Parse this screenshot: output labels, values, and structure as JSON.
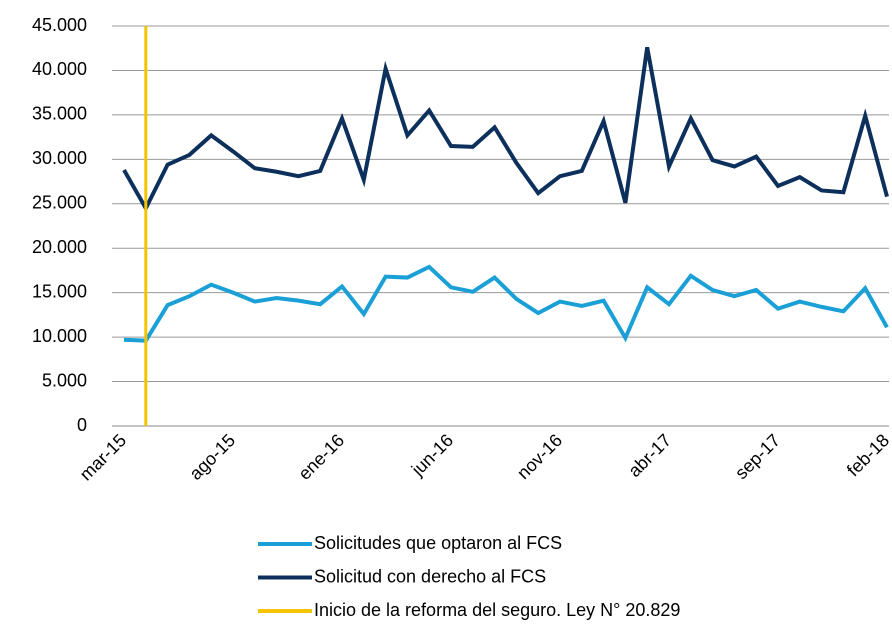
{
  "chart_data": {
    "type": "line",
    "categories": [
      "mar-15",
      null,
      null,
      null,
      null,
      "ago-15",
      null,
      null,
      null,
      null,
      "ene-16",
      null,
      null,
      null,
      null,
      "jun-16",
      null,
      null,
      null,
      null,
      "nov-16",
      null,
      null,
      null,
      null,
      "abr-17",
      null,
      null,
      null,
      null,
      "sep-17",
      null,
      null,
      null,
      null,
      "feb-18"
    ],
    "series": [
      {
        "name": "Solicitudes que optaron al FCS",
        "color": "#1aa0d6",
        "values": [
          9700,
          9600,
          13600,
          14600,
          15900,
          15000,
          14000,
          14400,
          14100,
          13700,
          15700,
          12600,
          16800,
          16700,
          17900,
          15600,
          15100,
          16700,
          14300,
          12700,
          14000,
          13500,
          14100,
          9900,
          15600,
          13700,
          16900,
          15300,
          14600,
          15300,
          13200,
          14000,
          13400,
          12900,
          15500,
          11100
        ]
      },
      {
        "name": "Solicitud  con derecho al FCS",
        "color": "#0d2f5c",
        "values": [
          28800,
          24500,
          29400,
          30500,
          32700,
          30900,
          29000,
          28600,
          28100,
          28700,
          34600,
          27700,
          40200,
          32700,
          35500,
          31500,
          31400,
          33600,
          29600,
          26200,
          28100,
          28700,
          34300,
          25100,
          42600,
          29200,
          34600,
          29900,
          29200,
          30300,
          27000,
          28000,
          26500,
          26300,
          34900,
          25800
        ]
      }
    ],
    "reform_marker": {
      "name": "Inicio de la reforma del seguro. Ley N° 20.829",
      "color": "#f5c400",
      "index": 1
    },
    "ylim": [
      0,
      45000
    ],
    "yticks": [
      0,
      {
        "value": 5000,
        "label": "5.000"
      },
      {
        "value": 10000,
        "label": "10.000"
      },
      {
        "value": 15000,
        "label": "15.000"
      },
      {
        "value": 20000,
        "label": "20.000"
      },
      {
        "value": 25000,
        "label": "25.000"
      },
      {
        "value": 30000,
        "label": "30.000"
      },
      {
        "value": 35000,
        "label": "35.000"
      },
      {
        "value": 40000,
        "label": "40.000"
      },
      {
        "value": 45000,
        "label": "45.000"
      }
    ],
    "grid": true,
    "legend": "bottom"
  }
}
